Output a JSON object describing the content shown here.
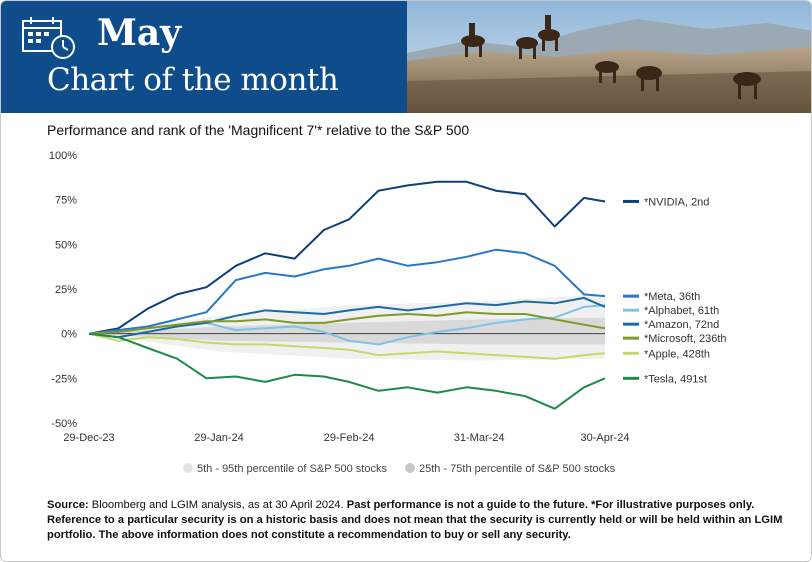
{
  "header": {
    "month": "May",
    "subtitle": "Chart of the month",
    "calendar_icon": "calendar-clock-icon",
    "photo_description_icon": "horses-riders-photo"
  },
  "chart_data": {
    "type": "line",
    "title": "Performance and rank of the 'Magnificent 7'* relative to the S&P 500",
    "xlabel": "",
    "ylabel": "",
    "x_ticks": [
      "29-Dec-23",
      "29-Jan-24",
      "29-Feb-24",
      "31-Mar-24",
      "30-Apr-24"
    ],
    "y_ticks": [
      "100%",
      "75%",
      "50%",
      "25%",
      "0%",
      "-25%",
      "-50%"
    ],
    "ylim": [
      -50,
      100
    ],
    "x_range": [
      "2023-12-29",
      "2024-04-30"
    ],
    "grid": false,
    "legend_position": "right",
    "series": [
      {
        "name": "*NVIDIA, 2nd",
        "color": "#0d3f7a",
        "x": [
          "2023-12-29",
          "2024-01-05",
          "2024-01-12",
          "2024-01-19",
          "2024-01-26",
          "2024-02-02",
          "2024-02-09",
          "2024-02-16",
          "2024-02-23",
          "2024-02-29",
          "2024-03-07",
          "2024-03-14",
          "2024-03-21",
          "2024-03-28",
          "2024-04-04",
          "2024-04-11",
          "2024-04-18",
          "2024-04-25",
          "2024-04-30"
        ],
        "values": [
          0,
          3,
          14,
          22,
          26,
          38,
          45,
          42,
          58,
          64,
          80,
          83,
          85,
          85,
          80,
          78,
          60,
          76,
          74
        ]
      },
      {
        "name": "*Meta, 36th",
        "color": "#2a77c7",
        "x": [
          "2023-12-29",
          "2024-01-05",
          "2024-01-12",
          "2024-01-19",
          "2024-01-26",
          "2024-02-02",
          "2024-02-09",
          "2024-02-16",
          "2024-02-23",
          "2024-02-29",
          "2024-03-07",
          "2024-03-14",
          "2024-03-21",
          "2024-03-28",
          "2024-04-04",
          "2024-04-11",
          "2024-04-18",
          "2024-04-25",
          "2024-04-30"
        ],
        "values": [
          0,
          2,
          4,
          8,
          12,
          30,
          34,
          32,
          36,
          38,
          42,
          38,
          40,
          43,
          47,
          45,
          38,
          22,
          21
        ]
      },
      {
        "name": "*Alphabet, 61th",
        "color": "#7ec3e8",
        "x": [
          "2023-12-29",
          "2024-01-05",
          "2024-01-12",
          "2024-01-19",
          "2024-01-26",
          "2024-02-02",
          "2024-02-09",
          "2024-02-16",
          "2024-02-23",
          "2024-02-29",
          "2024-03-07",
          "2024-03-14",
          "2024-03-21",
          "2024-03-28",
          "2024-04-04",
          "2024-04-11",
          "2024-04-18",
          "2024-04-25",
          "2024-04-30"
        ],
        "values": [
          0,
          1,
          3,
          5,
          6,
          2,
          3,
          4,
          1,
          -4,
          -6,
          -2,
          1,
          3,
          6,
          8,
          9,
          15,
          16
        ]
      },
      {
        "name": "*Amazon, 72nd",
        "color": "#1b6ba3",
        "x": [
          "2023-12-29",
          "2024-01-05",
          "2024-01-12",
          "2024-01-19",
          "2024-01-26",
          "2024-02-02",
          "2024-02-09",
          "2024-02-16",
          "2024-02-23",
          "2024-02-29",
          "2024-03-07",
          "2024-03-14",
          "2024-03-21",
          "2024-03-28",
          "2024-04-04",
          "2024-04-11",
          "2024-04-18",
          "2024-04-25",
          "2024-04-30"
        ],
        "values": [
          0,
          -2,
          1,
          4,
          6,
          10,
          13,
          12,
          11,
          13,
          15,
          13,
          15,
          17,
          16,
          18,
          17,
          20,
          15
        ]
      },
      {
        "name": "*Microsoft, 236th",
        "color": "#7e9a2a",
        "x": [
          "2023-12-29",
          "2024-01-05",
          "2024-01-12",
          "2024-01-19",
          "2024-01-26",
          "2024-02-02",
          "2024-02-09",
          "2024-02-16",
          "2024-02-23",
          "2024-02-29",
          "2024-03-07",
          "2024-03-14",
          "2024-03-21",
          "2024-03-28",
          "2024-04-04",
          "2024-04-11",
          "2024-04-18",
          "2024-04-25",
          "2024-04-30"
        ],
        "values": [
          0,
          1,
          3,
          5,
          7,
          7,
          8,
          6,
          6,
          8,
          10,
          11,
          10,
          12,
          11,
          11,
          8,
          5,
          3
        ]
      },
      {
        "name": "*Apple, 428th",
        "color": "#c5d96a",
        "x": [
          "2023-12-29",
          "2024-01-05",
          "2024-01-12",
          "2024-01-19",
          "2024-01-26",
          "2024-02-02",
          "2024-02-09",
          "2024-02-16",
          "2024-02-23",
          "2024-02-29",
          "2024-03-07",
          "2024-03-14",
          "2024-03-21",
          "2024-03-28",
          "2024-04-04",
          "2024-04-11",
          "2024-04-18",
          "2024-04-25",
          "2024-04-30"
        ],
        "values": [
          0,
          -4,
          -2,
          -3,
          -5,
          -6,
          -6,
          -7,
          -8,
          -9,
          -12,
          -11,
          -10,
          -11,
          -12,
          -13,
          -14,
          -12,
          -11
        ]
      },
      {
        "name": "*Tesla, 491st",
        "color": "#1d8a4a",
        "x": [
          "2023-12-29",
          "2024-01-05",
          "2024-01-12",
          "2024-01-19",
          "2024-01-26",
          "2024-02-02",
          "2024-02-09",
          "2024-02-16",
          "2024-02-23",
          "2024-02-29",
          "2024-03-07",
          "2024-03-14",
          "2024-03-21",
          "2024-03-28",
          "2024-04-04",
          "2024-04-11",
          "2024-04-18",
          "2024-04-25",
          "2024-04-30"
        ],
        "values": [
          0,
          -2,
          -8,
          -14,
          -25,
          -24,
          -27,
          -23,
          -24,
          -27,
          -32,
          -30,
          -33,
          -30,
          -32,
          -35,
          -42,
          -30,
          -25
        ]
      }
    ],
    "bands": [
      {
        "name": "5th - 95th percentile of S&P 500 stocks",
        "color": "#f0f0f0",
        "x": [
          "2023-12-29",
          "2024-01-29",
          "2024-02-29",
          "2024-03-31",
          "2024-04-30"
        ],
        "lower": [
          0,
          -10,
          -14,
          -15,
          -14
        ],
        "upper": [
          0,
          10,
          16,
          18,
          22
        ]
      },
      {
        "name": "25th - 75th percentile of S&P 500 stocks",
        "color": "#d9d9d9",
        "x": [
          "2023-12-29",
          "2024-01-29",
          "2024-02-29",
          "2024-03-31",
          "2024-04-30"
        ],
        "lower": [
          0,
          -4,
          -5,
          -6,
          -6
        ],
        "upper": [
          0,
          4,
          6,
          8,
          9
        ]
      }
    ]
  },
  "footer": {
    "source_label": "Source:",
    "source_text": " Bloomberg and LGIM analysis, as at 30 April 2024. ",
    "disclaimer": "Past performance is not a guide to the future. *For illustrative purposes only. Reference to a particular security is on a historic basis and does not mean that the security is currently held or will be held within an LGIM portfolio. The above information does not constitute a recommendation to buy or sell any security."
  }
}
